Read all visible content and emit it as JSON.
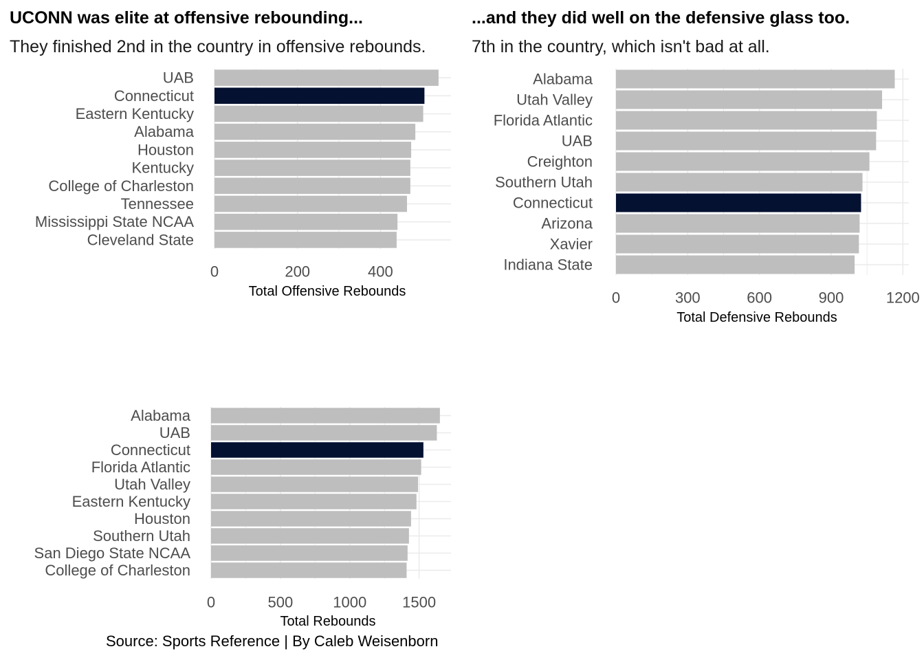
{
  "chart_data": [
    {
      "type": "bar",
      "orientation": "horizontal",
      "title": "UCONN was elite at offensive rebounding...",
      "subtitle": "They finished 2nd in the country in offensive rebounds.",
      "categories": [
        "UAB",
        "Connecticut",
        "Eastern Kentucky",
        "Alabama",
        "Houston",
        "Kentucky",
        "College of Charleston",
        "Tennessee",
        "Mississippi State NCAA",
        "Cleveland State"
      ],
      "values": [
        540,
        506,
        503,
        484,
        474,
        472,
        472,
        464,
        441,
        439
      ],
      "highlight": "Connecticut",
      "xlabel": "Total Offensive Rebounds",
      "ylabel": "",
      "xlim": [
        0,
        570
      ],
      "ticks": [
        0,
        200,
        400
      ],
      "grid": true
    },
    {
      "type": "bar",
      "orientation": "horizontal",
      "title": "...and they did well on the defensive glass too.",
      "subtitle": "7th in the country, which isn't bad at all.",
      "categories": [
        "Alabama",
        "Utah Valley",
        "Florida Atlantic",
        "UAB",
        "Creighton",
        "Southern Utah",
        "Connecticut",
        "Arizona",
        "Xavier",
        "Indiana State"
      ],
      "values": [
        1166,
        1113,
        1091,
        1088,
        1060,
        1031,
        1025,
        1019,
        1016,
        998
      ],
      "highlight": "Connecticut",
      "xlabel": "Total Defensive Rebounds",
      "ylabel": "",
      "xlim": [
        0,
        1225
      ],
      "ticks": [
        0,
        300,
        600,
        900,
        1200
      ],
      "grid": true
    },
    {
      "type": "bar",
      "orientation": "horizontal",
      "title": "",
      "subtitle": "",
      "categories": [
        "Alabama",
        "UAB",
        "Connecticut",
        "Florida Atlantic",
        "Utah Valley",
        "Eastern Kentucky",
        "Houston",
        "Southern Utah",
        "San Diego State NCAA",
        "College of Charleston"
      ],
      "values": [
        1650,
        1628,
        1531,
        1515,
        1492,
        1481,
        1442,
        1427,
        1417,
        1410
      ],
      "highlight": "Connecticut",
      "xlabel": "Total Rebounds",
      "ylabel": "",
      "xlim": [
        0,
        1730
      ],
      "ticks": [
        0,
        500,
        1000,
        1500
      ],
      "grid": true
    }
  ],
  "caption": "Source: Sports Reference | By Caleb Weisenborn",
  "colors": {
    "bar": "#bebebe",
    "highlight": "#041131",
    "grid": "#ebebeb",
    "label": "#4d4d4d"
  }
}
